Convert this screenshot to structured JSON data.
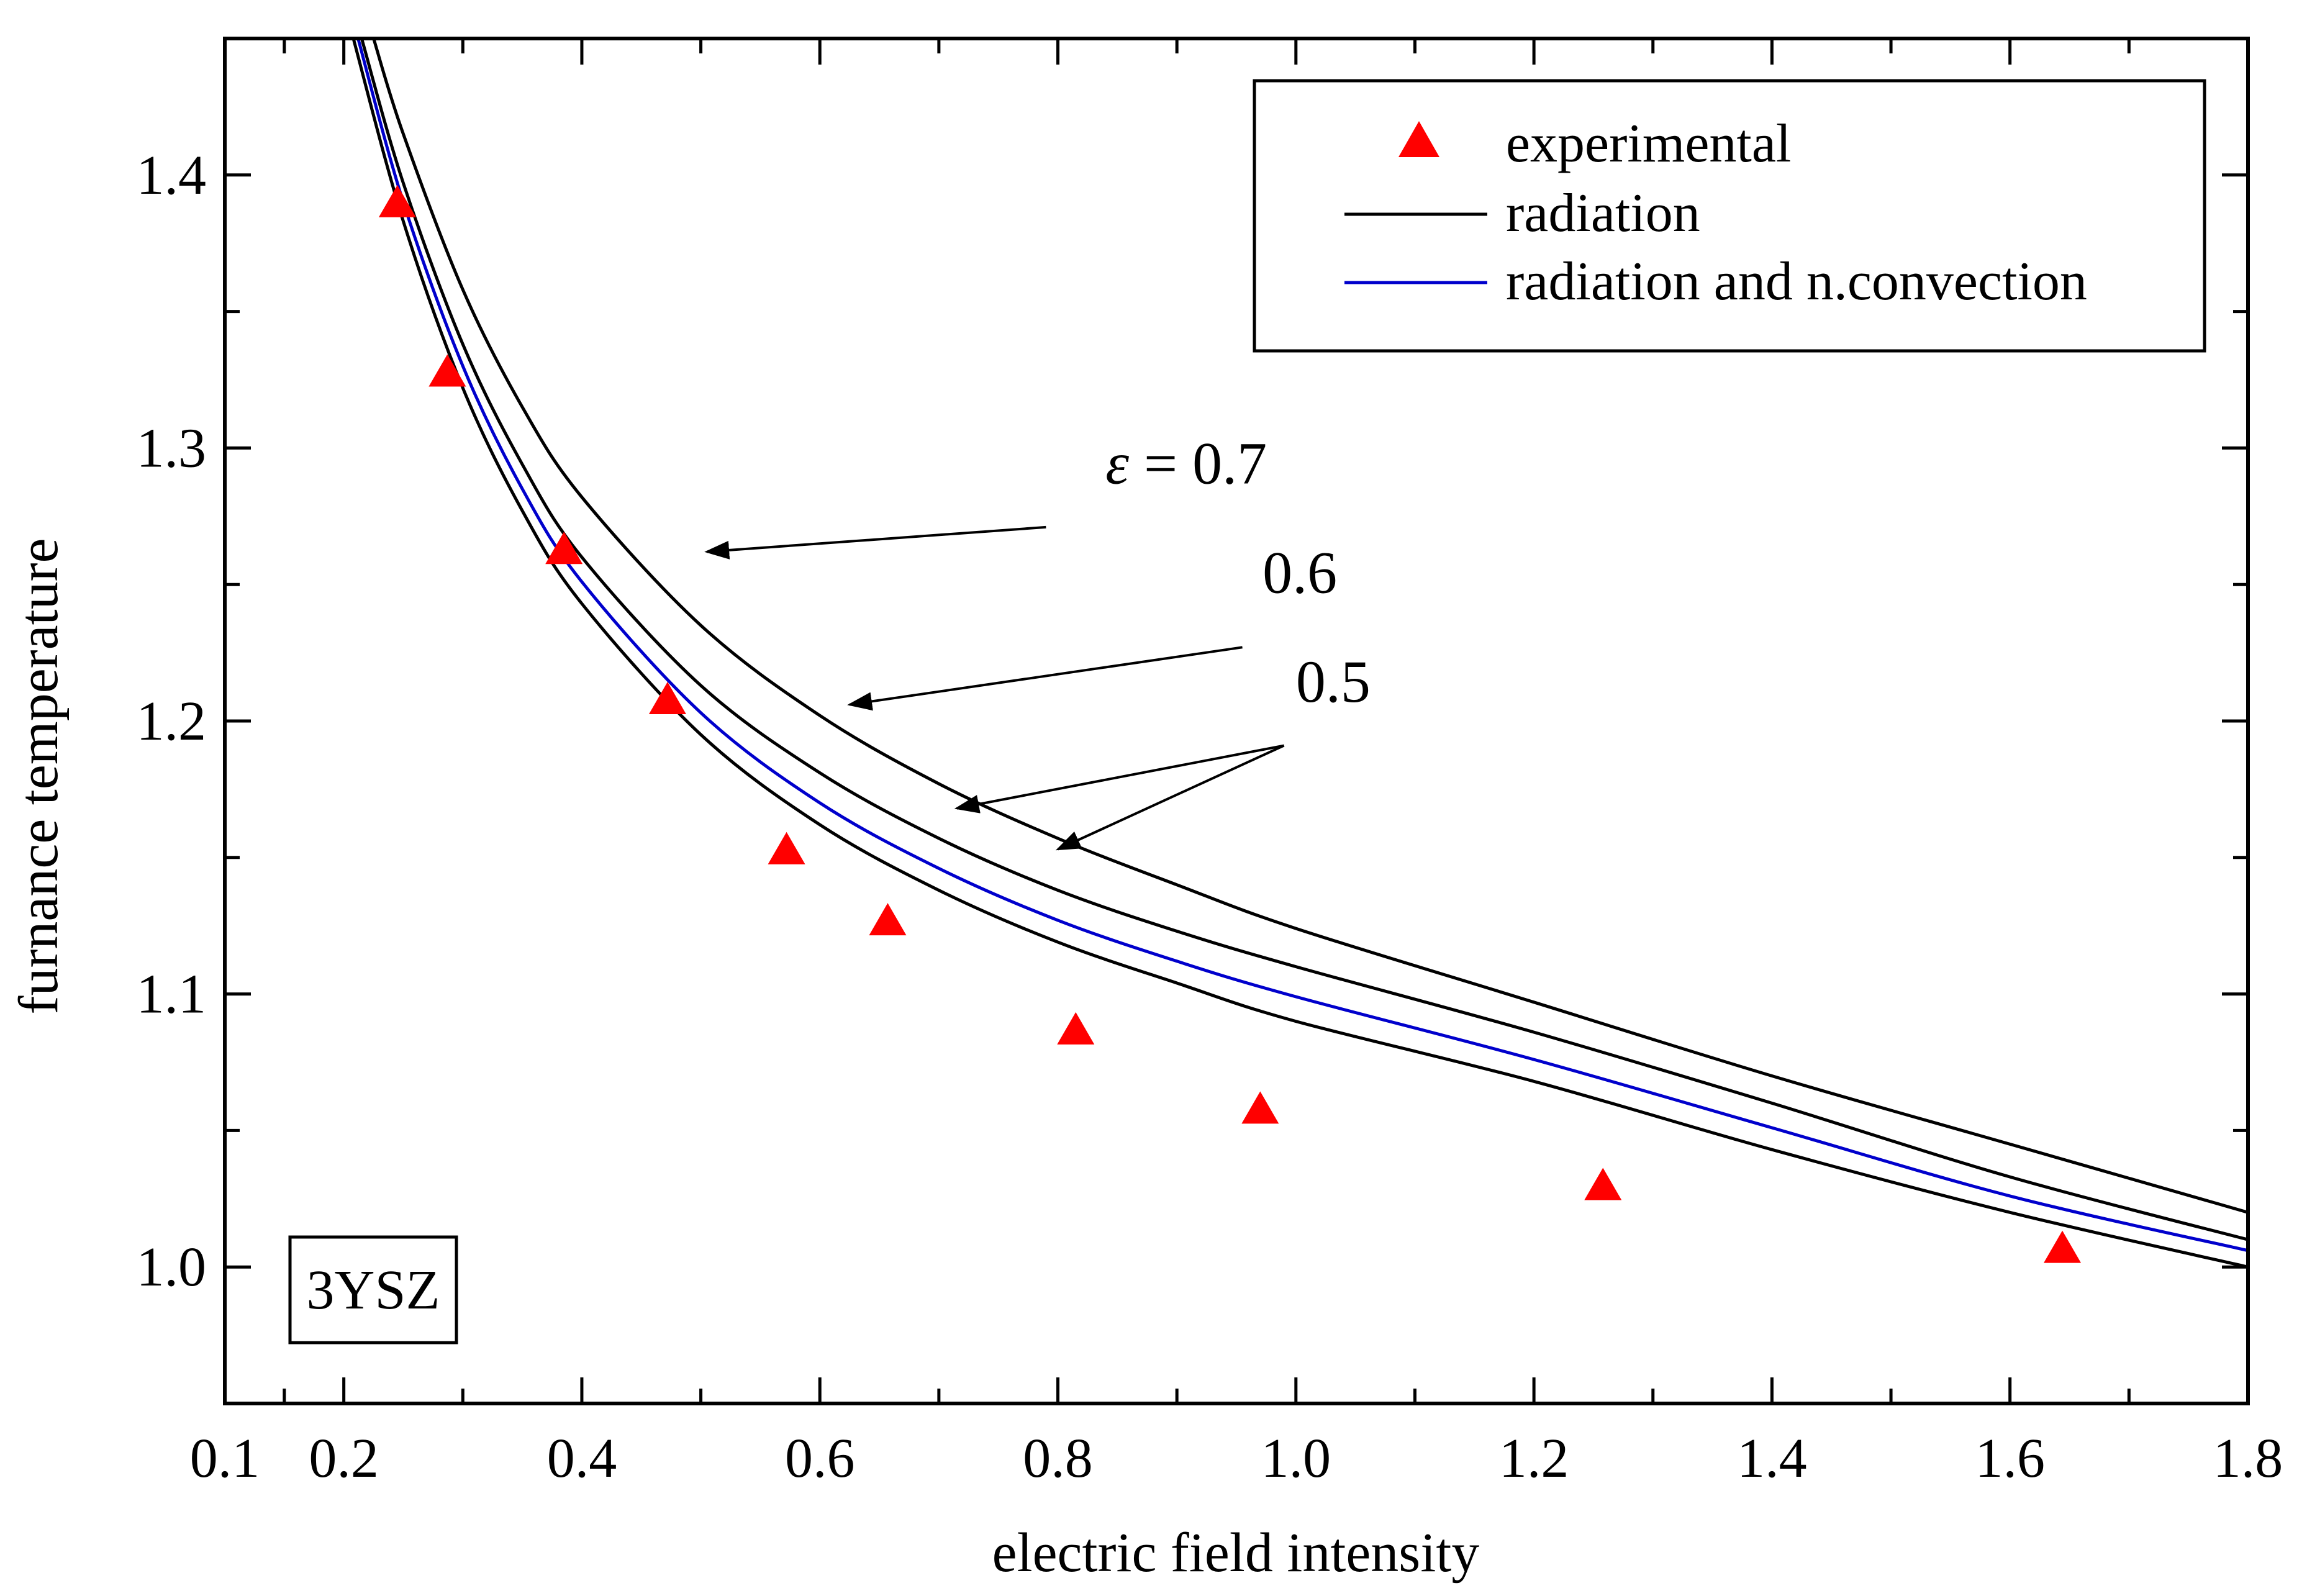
{
  "chart_data": {
    "type": "scatter",
    "title": "",
    "xlabel": "electric field intensity",
    "ylabel": "furnance temperature",
    "xlim": [
      0.1,
      1.8
    ],
    "ylim": [
      0.95,
      1.45
    ],
    "x_ticks": [
      0.1,
      0.2,
      0.4,
      0.6,
      0.8,
      1.0,
      1.2,
      1.4,
      1.6,
      1.8
    ],
    "x_tick_labels": [
      "0.1",
      "0.2",
      "0.4",
      "0.6",
      "0.8",
      "1.0",
      "1.2",
      "1.4",
      "1.6",
      "1.8"
    ],
    "y_ticks": [
      1.0,
      1.1,
      1.2,
      1.3,
      1.4
    ],
    "y_tick_labels": [
      "1.0",
      "1.1",
      "1.2",
      "1.3",
      "1.4"
    ],
    "grid": false,
    "legend_position": "top-right",
    "legend": [
      {
        "label": "experimental",
        "type": "marker"
      },
      {
        "label": "radiation",
        "type": "line"
      },
      {
        "label": "radiation and n.convection",
        "type": "line"
      }
    ],
    "series": [
      {
        "name": "experimental",
        "kind": "scatter",
        "marker": "triangle",
        "color": "#ff0000",
        "x": [
          0.245,
          0.287,
          0.385,
          0.472,
          0.572,
          0.657,
          0.815,
          0.97,
          1.258,
          1.644
        ],
        "y": [
          1.389,
          1.327,
          1.262,
          1.207,
          1.152,
          1.126,
          1.086,
          1.057,
          1.029,
          1.006
        ]
      },
      {
        "name": "radiation",
        "kind": "line",
        "color": "#000000",
        "x": [
          0.208,
          0.25,
          0.3,
          0.35,
          0.4,
          0.5,
          0.6,
          0.7,
          0.8,
          0.9,
          1.0,
          1.2,
          1.4,
          1.6,
          1.8
        ],
        "y": [
          1.45,
          1.383,
          1.322,
          1.277,
          1.243,
          1.195,
          1.162,
          1.138,
          1.119,
          1.104,
          1.09,
          1.068,
          1.043,
          1.02,
          1.0
        ]
      },
      {
        "name": "radiation",
        "kind": "line",
        "color": "#000000",
        "x": [
          0.215,
          0.25,
          0.3,
          0.35,
          0.4,
          0.5,
          0.6,
          0.7,
          0.8,
          0.9,
          1.0,
          1.2,
          1.4,
          1.6,
          1.8
        ],
        "y": [
          1.45,
          1.397,
          1.338,
          1.294,
          1.26,
          1.213,
          1.181,
          1.157,
          1.138,
          1.123,
          1.11,
          1.086,
          1.06,
          1.033,
          1.01
        ]
      },
      {
        "name": "radiation",
        "kind": "line",
        "color": "#000000",
        "x": [
          0.225,
          0.25,
          0.3,
          0.35,
          0.4,
          0.5,
          0.6,
          0.7,
          0.8,
          0.9,
          1.0,
          1.2,
          1.4,
          1.6,
          1.8
        ],
        "y": [
          1.45,
          1.415,
          1.358,
          1.315,
          1.282,
          1.235,
          1.202,
          1.177,
          1.157,
          1.14,
          1.124,
          1.097,
          1.07,
          1.045,
          1.02
        ]
      },
      {
        "name": "radiation and n.convection",
        "kind": "line",
        "color": "#0000cc",
        "x": [
          0.212,
          0.25,
          0.3,
          0.35,
          0.4,
          0.5,
          0.6,
          0.7,
          0.8,
          0.9,
          1.0,
          1.2,
          1.4,
          1.6,
          1.8
        ],
        "y": [
          1.45,
          1.39,
          1.33,
          1.285,
          1.251,
          1.203,
          1.17,
          1.146,
          1.127,
          1.112,
          1.099,
          1.076,
          1.051,
          1.026,
          1.006
        ]
      }
    ],
    "annotations": [
      {
        "label_prefix": "ε",
        "label": "= 0.7",
        "text_x": 0.84,
        "text_y": 1.287,
        "arrows": [
          {
            "from_x": 0.79,
            "from_y": 1.271,
            "to_x": 0.505,
            "to_y": 1.262
          }
        ]
      },
      {
        "label": "0.6",
        "text_x": 0.972,
        "text_y": 1.247,
        "arrows": [
          {
            "from_x": 0.955,
            "from_y": 1.227,
            "to_x": 0.625,
            "to_y": 1.206
          }
        ]
      },
      {
        "label": "0.5",
        "text_x": 1.0,
        "text_y": 1.207,
        "arrows": [
          {
            "from_x": 0.99,
            "from_y": 1.191,
            "to_x": 0.715,
            "to_y": 1.168
          },
          {
            "from_x": 0.99,
            "from_y": 1.191,
            "to_x": 0.8,
            "to_y": 1.153
          }
        ]
      }
    ],
    "sample_label": "3YSZ"
  }
}
